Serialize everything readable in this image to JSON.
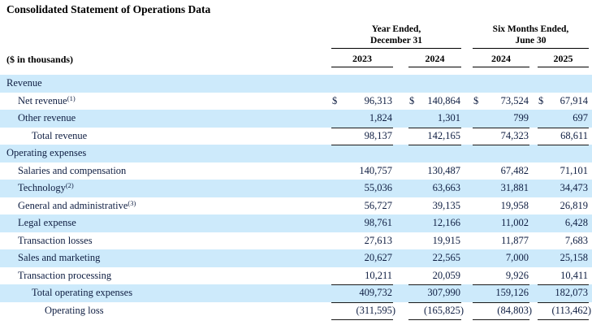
{
  "title": "Consolidated Statement of Operations Data",
  "unit_label": "($ in thousands)",
  "colors": {
    "stripe_blue": "#cdeafb",
    "body_text": "#0f1e42",
    "rule_line": "#1a1a1a"
  },
  "table": {
    "groups": [
      {
        "line1": "Year Ended,",
        "line2": "December 31"
      },
      {
        "line1": "Six Months Ended,",
        "line2": "June 30"
      }
    ],
    "years": [
      "2023",
      "2024",
      "2024",
      "2025"
    ],
    "rows": [
      {
        "label": "Revenue",
        "indent": 0,
        "values": []
      },
      {
        "label": "Net revenue",
        "sup": "(1)",
        "indent": 1,
        "dollar": true,
        "values": [
          "96,313",
          "140,864",
          "73,524",
          "67,914"
        ]
      },
      {
        "label": "Other revenue",
        "indent": 1,
        "values": [
          "1,824",
          "1,301",
          "799",
          "697"
        ],
        "rule_below": true
      },
      {
        "label": "Total revenue",
        "indent": 2,
        "values": [
          "98,137",
          "142,165",
          "74,323",
          "68,611"
        ],
        "rule_below": true
      },
      {
        "label": "Operating expenses",
        "indent": 0,
        "values": []
      },
      {
        "label": "Salaries and compensation",
        "indent": 1,
        "values": [
          "140,757",
          "130,487",
          "67,482",
          "71,101"
        ]
      },
      {
        "label": "Technology",
        "sup": "(2)",
        "indent": 1,
        "values": [
          "55,036",
          "63,663",
          "31,881",
          "34,473"
        ]
      },
      {
        "label": "General and administrative",
        "sup": "(3)",
        "indent": 1,
        "values": [
          "56,727",
          "39,135",
          "19,958",
          "26,819"
        ]
      },
      {
        "label": "Legal expense",
        "indent": 1,
        "values": [
          "98,761",
          "12,166",
          "11,002",
          "6,428"
        ]
      },
      {
        "label": "Transaction losses",
        "indent": 1,
        "values": [
          "27,613",
          "19,915",
          "11,877",
          "7,683"
        ]
      },
      {
        "label": "Sales and marketing",
        "indent": 1,
        "values": [
          "20,627",
          "22,565",
          "7,000",
          "25,158"
        ]
      },
      {
        "label": "Transaction processing",
        "indent": 1,
        "values": [
          "10,211",
          "20,059",
          "9,926",
          "10,411"
        ],
        "rule_below": true
      },
      {
        "label": "Total operating expenses",
        "indent": 2,
        "values": [
          "409,732",
          "307,990",
          "159,126",
          "182,073"
        ],
        "rule_below": true
      },
      {
        "label": "Operating loss",
        "indent": 3,
        "values": [
          "(311,595)",
          "(165,825)",
          "(84,803)",
          "(113,462)"
        ],
        "rule_below": true
      }
    ]
  }
}
